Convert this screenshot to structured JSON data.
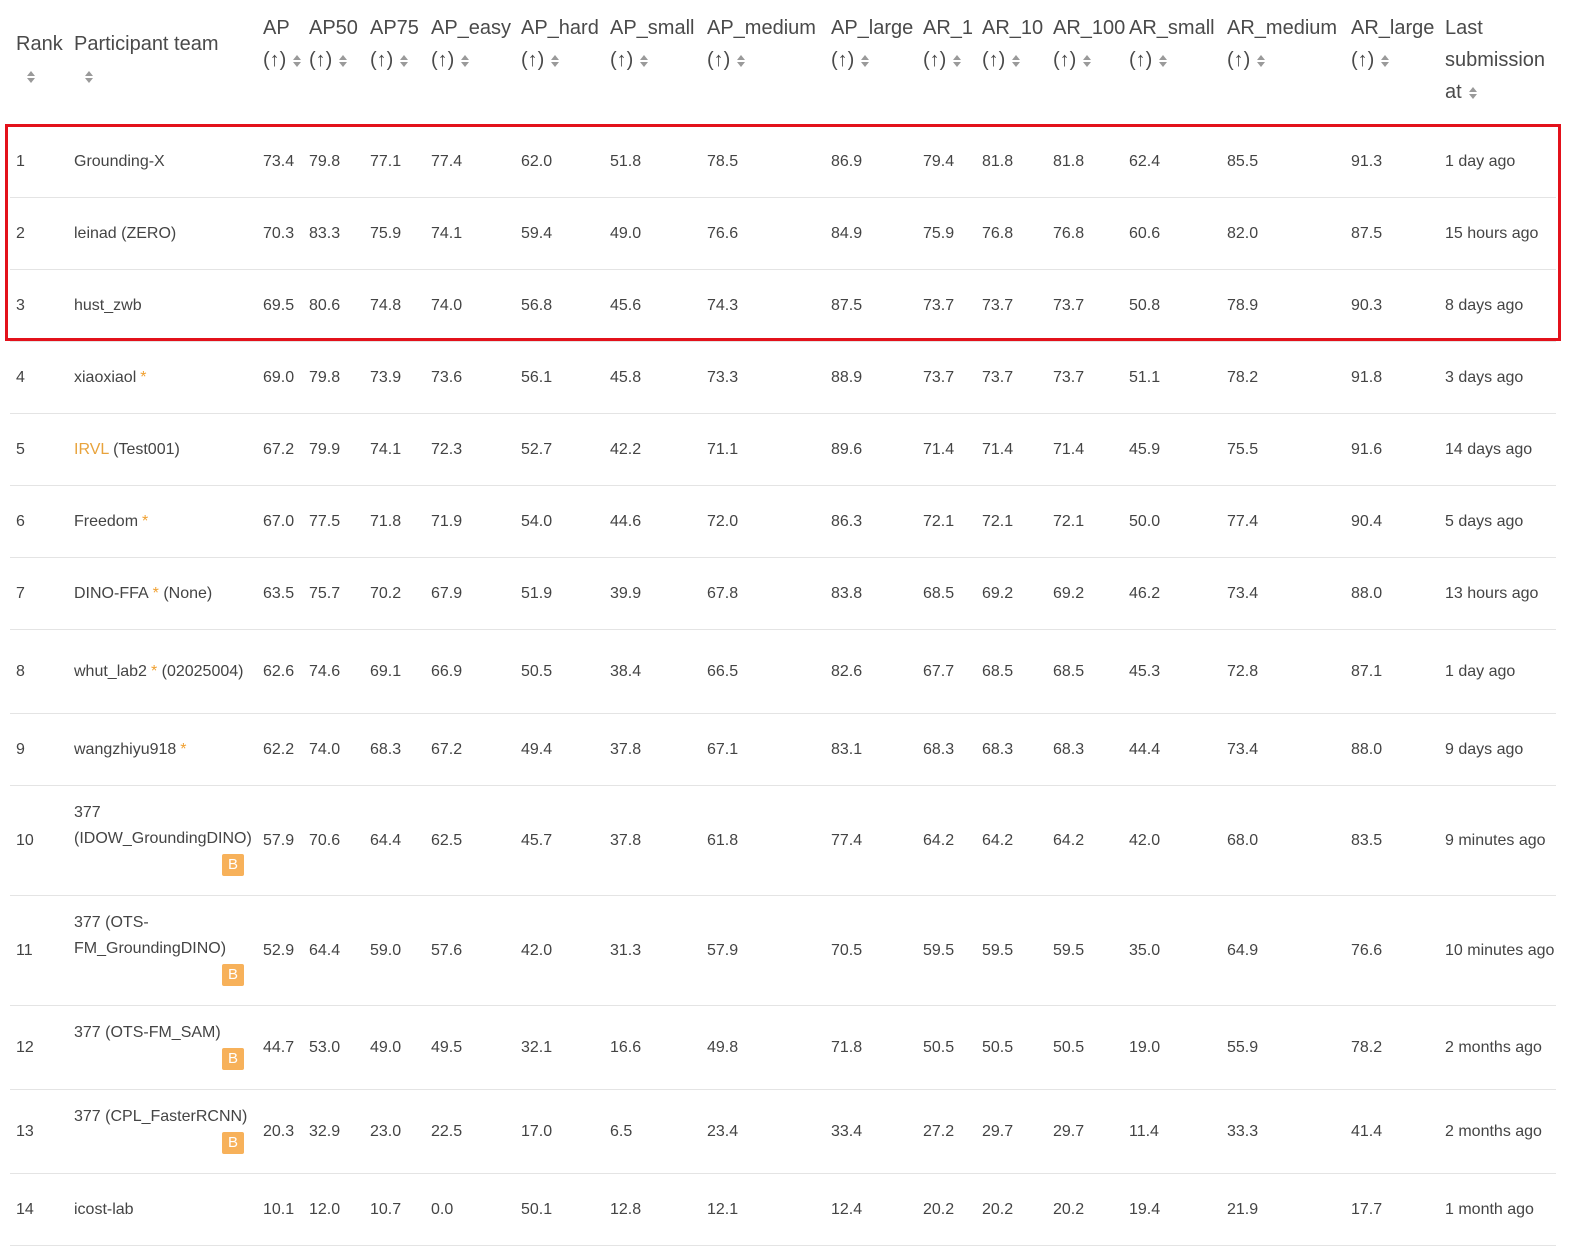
{
  "colors": {
    "highlight_border": "#e3111b",
    "star": "#f0a030",
    "badge": "#f7b15a",
    "link": "#e8a33c"
  },
  "header": [
    {
      "key": "rank",
      "lines": [
        "Rank"
      ]
    },
    {
      "key": "team",
      "lines": [
        "Participant team"
      ]
    },
    {
      "key": "ap",
      "lines": [
        "AP",
        "(↑)"
      ]
    },
    {
      "key": "ap50",
      "lines": [
        "AP50",
        "(↑)"
      ]
    },
    {
      "key": "ap75",
      "lines": [
        "AP75",
        "(↑)"
      ]
    },
    {
      "key": "ap_easy",
      "lines": [
        "AP_easy",
        "(↑)"
      ]
    },
    {
      "key": "ap_hard",
      "lines": [
        "AP_hard",
        "(↑)"
      ]
    },
    {
      "key": "ap_small",
      "lines": [
        "AP_small",
        "(↑)"
      ]
    },
    {
      "key": "ap_medium",
      "lines": [
        "AP_medium",
        "(↑)"
      ]
    },
    {
      "key": "ap_large",
      "lines": [
        "AP_large",
        "(↑)"
      ]
    },
    {
      "key": "ar_1",
      "lines": [
        "AR_1",
        "(↑)"
      ]
    },
    {
      "key": "ar_10",
      "lines": [
        "AR_10",
        "(↑)"
      ]
    },
    {
      "key": "ar_100",
      "lines": [
        "AR_100",
        "(↑)"
      ]
    },
    {
      "key": "ar_small",
      "lines": [
        "AR_small",
        "(↑)"
      ]
    },
    {
      "key": "ar_medium",
      "lines": [
        "AR_medium",
        "(↑)"
      ]
    },
    {
      "key": "ar_large",
      "lines": [
        "AR_large",
        "(↑)"
      ]
    },
    {
      "key": "last",
      "lines": [
        "Last",
        "submission",
        "at"
      ]
    }
  ],
  "rows": [
    {
      "rank": "1",
      "team": "Grounding-X",
      "star": false,
      "link": "",
      "suffix": "",
      "badge": "",
      "metrics": [
        "73.4",
        "79.8",
        "77.1",
        "77.4",
        "62.0",
        "51.8",
        "78.5",
        "86.9",
        "79.4",
        "81.8",
        "81.8",
        "62.4",
        "85.5",
        "91.3"
      ],
      "last": "1 day ago"
    },
    {
      "rank": "2",
      "team": "leinad (ZERO)",
      "star": false,
      "link": "",
      "suffix": "",
      "badge": "",
      "metrics": [
        "70.3",
        "83.3",
        "75.9",
        "74.1",
        "59.4",
        "49.0",
        "76.6",
        "84.9",
        "75.9",
        "76.8",
        "76.8",
        "60.6",
        "82.0",
        "87.5"
      ],
      "last": "15 hours ago"
    },
    {
      "rank": "3",
      "team": "hust_zwb",
      "star": false,
      "link": "",
      "suffix": "",
      "badge": "",
      "metrics": [
        "69.5",
        "80.6",
        "74.8",
        "74.0",
        "56.8",
        "45.6",
        "74.3",
        "87.5",
        "73.7",
        "73.7",
        "73.7",
        "50.8",
        "78.9",
        "90.3"
      ],
      "last": "8 days ago"
    },
    {
      "rank": "4",
      "team": "xiaoxiaol",
      "star": true,
      "link": "",
      "suffix": "",
      "badge": "",
      "metrics": [
        "69.0",
        "79.8",
        "73.9",
        "73.6",
        "56.1",
        "45.8",
        "73.3",
        "88.9",
        "73.7",
        "73.7",
        "73.7",
        "51.1",
        "78.2",
        "91.8"
      ],
      "last": "3 days ago"
    },
    {
      "rank": "5",
      "team": "",
      "star": false,
      "link": "IRVL",
      "suffix": " (Test001)",
      "badge": "",
      "metrics": [
        "67.2",
        "79.9",
        "74.1",
        "72.3",
        "52.7",
        "42.2",
        "71.1",
        "89.6",
        "71.4",
        "71.4",
        "71.4",
        "45.9",
        "75.5",
        "91.6"
      ],
      "last": "14 days ago"
    },
    {
      "rank": "6",
      "team": "Freedom",
      "star": true,
      "link": "",
      "suffix": "",
      "badge": "",
      "metrics": [
        "67.0",
        "77.5",
        "71.8",
        "71.9",
        "54.0",
        "44.6",
        "72.0",
        "86.3",
        "72.1",
        "72.1",
        "72.1",
        "50.0",
        "77.4",
        "90.4"
      ],
      "last": "5 days ago"
    },
    {
      "rank": "7",
      "team": "DINO-FFA",
      "star": true,
      "link": "",
      "suffix": " (None)",
      "badge": "",
      "metrics": [
        "63.5",
        "75.7",
        "70.2",
        "67.9",
        "51.9",
        "39.9",
        "67.8",
        "83.8",
        "68.5",
        "69.2",
        "69.2",
        "46.2",
        "73.4",
        "88.0"
      ],
      "last": "13 hours ago"
    },
    {
      "rank": "8",
      "team": "whut_lab2",
      "star": true,
      "link": "",
      "suffix": " (02025004)",
      "badge": "",
      "metrics": [
        "62.6",
        "74.6",
        "69.1",
        "66.9",
        "50.5",
        "38.4",
        "66.5",
        "82.6",
        "67.7",
        "68.5",
        "68.5",
        "45.3",
        "72.8",
        "87.1"
      ],
      "last": "1 day ago"
    },
    {
      "rank": "9",
      "team": "wangzhiyu918",
      "star": true,
      "link": "",
      "suffix": "",
      "badge": "",
      "metrics": [
        "62.2",
        "74.0",
        "68.3",
        "67.2",
        "49.4",
        "37.8",
        "67.1",
        "83.1",
        "68.3",
        "68.3",
        "68.3",
        "44.4",
        "73.4",
        "88.0"
      ],
      "last": "9 days ago"
    },
    {
      "rank": "10",
      "team": "377 (IDOW_GroundingDINO)",
      "star": false,
      "link": "",
      "suffix": "",
      "badge": "B",
      "metrics": [
        "57.9",
        "70.6",
        "64.4",
        "62.5",
        "45.7",
        "37.8",
        "61.8",
        "77.4",
        "64.2",
        "64.2",
        "64.2",
        "42.0",
        "68.0",
        "83.5"
      ],
      "last": "9 minutes ago"
    },
    {
      "rank": "11",
      "team": "377 (OTS-FM_GroundingDINO)",
      "star": false,
      "link": "",
      "suffix": "",
      "badge": "B",
      "metrics": [
        "52.9",
        "64.4",
        "59.0",
        "57.6",
        "42.0",
        "31.3",
        "57.9",
        "70.5",
        "59.5",
        "59.5",
        "59.5",
        "35.0",
        "64.9",
        "76.6"
      ],
      "last": "10 minutes ago"
    },
    {
      "rank": "12",
      "team": "377 (OTS-FM_SAM)",
      "star": false,
      "link": "",
      "suffix": "",
      "badge": "B",
      "metrics": [
        "44.7",
        "53.0",
        "49.0",
        "49.5",
        "32.1",
        "16.6",
        "49.8",
        "71.8",
        "50.5",
        "50.5",
        "50.5",
        "19.0",
        "55.9",
        "78.2"
      ],
      "last": "2 months ago"
    },
    {
      "rank": "13",
      "team": "377 (CPL_FasterRCNN)",
      "star": false,
      "link": "",
      "suffix": "",
      "badge": "B",
      "metrics": [
        "20.3",
        "32.9",
        "23.0",
        "22.5",
        "17.0",
        "6.5",
        "23.4",
        "33.4",
        "27.2",
        "29.7",
        "29.7",
        "11.4",
        "33.3",
        "41.4"
      ],
      "last": "2 months ago"
    },
    {
      "rank": "14",
      "team": "icost-lab",
      "star": false,
      "link": "",
      "suffix": "",
      "badge": "",
      "metrics": [
        "10.1",
        "12.0",
        "10.7",
        "0.0",
        "50.1",
        "12.8",
        "12.1",
        "12.4",
        "20.2",
        "20.2",
        "20.2",
        "19.4",
        "21.9",
        "17.7"
      ],
      "last": "1 month ago"
    }
  ]
}
